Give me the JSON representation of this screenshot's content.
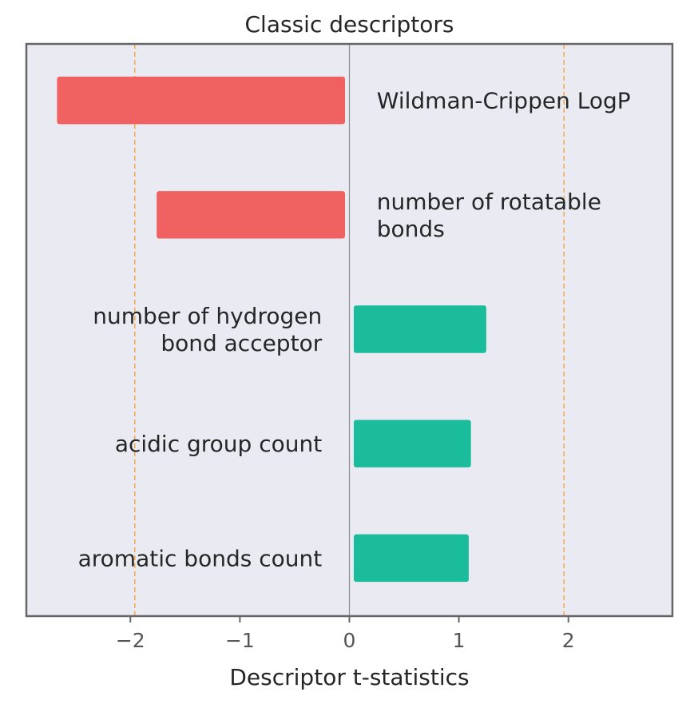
{
  "chart_data": {
    "type": "bar",
    "orientation": "horizontal",
    "title": "Classic descriptors",
    "xlabel": "Descriptor t-statistics",
    "ylabel": "",
    "xlim": [
      -2.95,
      2.95
    ],
    "xticks": [
      {
        "value": -2,
        "label": "−2"
      },
      {
        "value": -1,
        "label": "−1"
      },
      {
        "value": 0,
        "label": "0"
      },
      {
        "value": 1,
        "label": "1"
      },
      {
        "value": 2,
        "label": "2"
      }
    ],
    "threshold_lines": [
      -1.96,
      1.96
    ],
    "zero_line": 0,
    "grid": false,
    "legend": "none",
    "categories": [
      "Wildman-Crippen LogP",
      "number of rotatable bonds",
      "number of hydrogen bond acceptor",
      "acidic group count",
      "aromatic bonds count"
    ],
    "bars": [
      {
        "label_lines": [
          "Wildman-Crippen LogP"
        ],
        "start": -0.04,
        "end": -2.67
      },
      {
        "label_lines": [
          "number of rotatable",
          "bonds"
        ],
        "start": -0.04,
        "end": -1.76
      },
      {
        "label_lines": [
          "number of hydrogen",
          "bond acceptor"
        ],
        "start": 0.04,
        "end": 1.25
      },
      {
        "label_lines": [
          "acidic group count"
        ],
        "start": 0.04,
        "end": 1.11
      },
      {
        "label_lines": [
          "aromatic bonds count"
        ],
        "start": 0.04,
        "end": 1.09
      }
    ],
    "colors": {
      "negative": "#f06262",
      "positive": "#1abc9c",
      "threshold": "#f5a742",
      "zero_line": "#8c8c8c",
      "plot_background": "#eaeaf2",
      "frame": "#666666"
    }
  }
}
